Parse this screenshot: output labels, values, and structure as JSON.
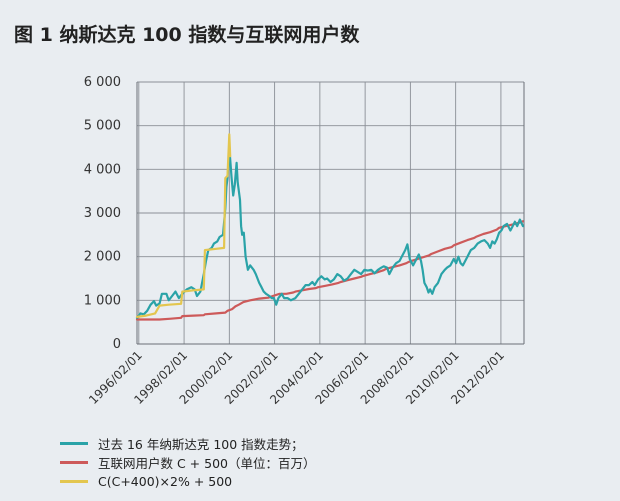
{
  "title": "图 1  纳斯达克 100 指数与互联网用户数",
  "chart_data": {
    "type": "line",
    "title": "图 1  纳斯达克 100 指数与互联网用户数",
    "xlabel": "",
    "ylabel": "",
    "xlim": [
      1996.0,
      2013.1
    ],
    "ylim": [
      0,
      6000
    ],
    "grid": true,
    "legend_position": "bottom-left",
    "x_ticks": [
      {
        "label": "1996/02/01",
        "value": 1996.08
      },
      {
        "label": "1998/02/01",
        "value": 1998.08
      },
      {
        "label": "2000/02/01",
        "value": 2000.08
      },
      {
        "label": "2002/02/01",
        "value": 2002.08
      },
      {
        "label": "2004/02/01",
        "value": 2004.08
      },
      {
        "label": "2006/02/01",
        "value": 2006.08
      },
      {
        "label": "2008/02/01",
        "value": 2008.08
      },
      {
        "label": "2010/02/01",
        "value": 2010.08
      },
      {
        "label": "2012/02/01",
        "value": 2012.08
      }
    ],
    "y_ticks": [
      {
        "label": "0",
        "value": 0
      },
      {
        "label": "1 000",
        "value": 1000
      },
      {
        "label": "2 000",
        "value": 2000
      },
      {
        "label": "3 000",
        "value": 3000
      },
      {
        "label": "4 000",
        "value": 4000
      },
      {
        "label": "5 000",
        "value": 5000
      },
      {
        "label": "6 000",
        "value": 6000
      }
    ],
    "series": [
      {
        "name": "过去 16 年纳斯达克 100 指数走势；",
        "color": "#2aa3a8",
        "points": [
          [
            1996.0,
            600
          ],
          [
            1996.15,
            700
          ],
          [
            1996.3,
            680
          ],
          [
            1996.45,
            760
          ],
          [
            1996.6,
            900
          ],
          [
            1996.75,
            980
          ],
          [
            1996.85,
            880
          ],
          [
            1997.0,
            930
          ],
          [
            1997.1,
            1150
          ],
          [
            1997.3,
            1150
          ],
          [
            1997.4,
            1000
          ],
          [
            1997.55,
            1100
          ],
          [
            1997.7,
            1200
          ],
          [
            1997.85,
            1050
          ],
          [
            1998.0,
            1150
          ],
          [
            1998.2,
            1250
          ],
          [
            1998.4,
            1300
          ],
          [
            1998.55,
            1250
          ],
          [
            1998.65,
            1100
          ],
          [
            1998.8,
            1200
          ],
          [
            1998.95,
            1600
          ],
          [
            1999.05,
            1900
          ],
          [
            1999.15,
            2150
          ],
          [
            1999.3,
            2200
          ],
          [
            1999.4,
            2300
          ],
          [
            1999.55,
            2350
          ],
          [
            1999.65,
            2450
          ],
          [
            1999.8,
            2500
          ],
          [
            1999.9,
            3100
          ],
          [
            1999.95,
            3600
          ],
          [
            2000.0,
            3800
          ],
          [
            2000.05,
            4200
          ],
          [
            2000.1,
            4350
          ],
          [
            2000.18,
            3800
          ],
          [
            2000.25,
            3400
          ],
          [
            2000.32,
            3650
          ],
          [
            2000.4,
            4150
          ],
          [
            2000.45,
            3700
          ],
          [
            2000.55,
            3300
          ],
          [
            2000.6,
            2700
          ],
          [
            2000.65,
            2500
          ],
          [
            2000.72,
            2550
          ],
          [
            2000.8,
            2000
          ],
          [
            2000.9,
            1700
          ],
          [
            2001.0,
            1800
          ],
          [
            2001.15,
            1700
          ],
          [
            2001.25,
            1600
          ],
          [
            2001.4,
            1400
          ],
          [
            2001.5,
            1300
          ],
          [
            2001.6,
            1200
          ],
          [
            2001.7,
            1150
          ],
          [
            2001.85,
            1100
          ],
          [
            2001.95,
            1050
          ],
          [
            2002.05,
            1050
          ],
          [
            2002.15,
            900
          ],
          [
            2002.25,
            1050
          ],
          [
            2002.4,
            1150
          ],
          [
            2002.5,
            1050
          ],
          [
            2002.65,
            1050
          ],
          [
            2002.8,
            1000
          ],
          [
            2003.0,
            1050
          ],
          [
            2003.15,
            1150
          ],
          [
            2003.3,
            1250
          ],
          [
            2003.45,
            1350
          ],
          [
            2003.6,
            1350
          ],
          [
            2003.75,
            1420
          ],
          [
            2003.85,
            1350
          ],
          [
            2004.0,
            1480
          ],
          [
            2004.15,
            1550
          ],
          [
            2004.3,
            1480
          ],
          [
            2004.4,
            1500
          ],
          [
            2004.55,
            1420
          ],
          [
            2004.7,
            1480
          ],
          [
            2004.85,
            1600
          ],
          [
            2005.0,
            1550
          ],
          [
            2005.15,
            1450
          ],
          [
            2005.3,
            1500
          ],
          [
            2005.45,
            1600
          ],
          [
            2005.6,
            1700
          ],
          [
            2005.75,
            1650
          ],
          [
            2005.9,
            1600
          ],
          [
            2006.05,
            1700
          ],
          [
            2006.2,
            1680
          ],
          [
            2006.35,
            1700
          ],
          [
            2006.5,
            1620
          ],
          [
            2006.65,
            1700
          ],
          [
            2006.8,
            1750
          ],
          [
            2006.9,
            1780
          ],
          [
            2007.05,
            1750
          ],
          [
            2007.15,
            1600
          ],
          [
            2007.3,
            1750
          ],
          [
            2007.45,
            1850
          ],
          [
            2007.6,
            1900
          ],
          [
            2007.75,
            2050
          ],
          [
            2007.85,
            2150
          ],
          [
            2007.95,
            2280
          ],
          [
            2008.05,
            1950
          ],
          [
            2008.2,
            1800
          ],
          [
            2008.3,
            1900
          ],
          [
            2008.45,
            2050
          ],
          [
            2008.55,
            1900
          ],
          [
            2008.62,
            1700
          ],
          [
            2008.7,
            1400
          ],
          [
            2008.8,
            1300
          ],
          [
            2008.88,
            1180
          ],
          [
            2008.95,
            1250
          ],
          [
            2009.05,
            1150
          ],
          [
            2009.15,
            1300
          ],
          [
            2009.3,
            1400
          ],
          [
            2009.45,
            1600
          ],
          [
            2009.6,
            1700
          ],
          [
            2009.7,
            1750
          ],
          [
            2009.85,
            1800
          ],
          [
            2010.0,
            1950
          ],
          [
            2010.1,
            1850
          ],
          [
            2010.2,
            2000
          ],
          [
            2010.3,
            1850
          ],
          [
            2010.4,
            1800
          ],
          [
            2010.5,
            1900
          ],
          [
            2010.6,
            2000
          ],
          [
            2010.75,
            2150
          ],
          [
            2010.9,
            2200
          ],
          [
            2011.05,
            2300
          ],
          [
            2011.2,
            2350
          ],
          [
            2011.35,
            2380
          ],
          [
            2011.5,
            2300
          ],
          [
            2011.6,
            2200
          ],
          [
            2011.7,
            2350
          ],
          [
            2011.8,
            2300
          ],
          [
            2011.9,
            2400
          ],
          [
            2012.0,
            2550
          ],
          [
            2012.1,
            2600
          ],
          [
            2012.2,
            2700
          ],
          [
            2012.35,
            2750
          ],
          [
            2012.5,
            2600
          ],
          [
            2012.6,
            2700
          ],
          [
            2012.7,
            2800
          ],
          [
            2012.8,
            2700
          ],
          [
            2012.92,
            2850
          ],
          [
            2013.05,
            2700
          ]
        ]
      },
      {
        "name": "互联网用户数 C + 500（单位：百万）",
        "color": "#cd5a5a",
        "points": [
          [
            1996.0,
            560
          ],
          [
            1996.5,
            560
          ],
          [
            1997.0,
            560
          ],
          [
            1997.5,
            580
          ],
          [
            1997.95,
            600
          ],
          [
            1998.0,
            640
          ],
          [
            1998.5,
            650
          ],
          [
            1998.95,
            660
          ],
          [
            1999.0,
            680
          ],
          [
            1999.5,
            700
          ],
          [
            1999.9,
            720
          ],
          [
            2000.0,
            760
          ],
          [
            2000.2,
            800
          ],
          [
            2000.35,
            860
          ],
          [
            2000.5,
            900
          ],
          [
            2000.7,
            960
          ],
          [
            2001.0,
            1000
          ],
          [
            2001.2,
            1020
          ],
          [
            2001.4,
            1040
          ],
          [
            2001.6,
            1050
          ],
          [
            2001.8,
            1060
          ],
          [
            2002.0,
            1100
          ],
          [
            2002.3,
            1150
          ],
          [
            2002.6,
            1150
          ],
          [
            2002.9,
            1180
          ],
          [
            2003.0,
            1200
          ],
          [
            2003.3,
            1230
          ],
          [
            2003.6,
            1260
          ],
          [
            2003.9,
            1280
          ],
          [
            2004.0,
            1300
          ],
          [
            2004.3,
            1330
          ],
          [
            2004.6,
            1360
          ],
          [
            2004.9,
            1400
          ],
          [
            2005.0,
            1420
          ],
          [
            2005.3,
            1460
          ],
          [
            2005.6,
            1500
          ],
          [
            2005.9,
            1540
          ],
          [
            2006.0,
            1560
          ],
          [
            2006.3,
            1600
          ],
          [
            2006.6,
            1640
          ],
          [
            2006.9,
            1690
          ],
          [
            2007.0,
            1720
          ],
          [
            2007.3,
            1760
          ],
          [
            2007.6,
            1800
          ],
          [
            2007.9,
            1850
          ],
          [
            2008.0,
            1880
          ],
          [
            2008.3,
            1930
          ],
          [
            2008.6,
            1980
          ],
          [
            2008.9,
            2030
          ],
          [
            2009.0,
            2060
          ],
          [
            2009.3,
            2120
          ],
          [
            2009.6,
            2180
          ],
          [
            2009.9,
            2220
          ],
          [
            2010.0,
            2260
          ],
          [
            2010.3,
            2320
          ],
          [
            2010.6,
            2380
          ],
          [
            2010.9,
            2430
          ],
          [
            2011.0,
            2460
          ],
          [
            2011.3,
            2520
          ],
          [
            2011.6,
            2560
          ],
          [
            2011.9,
            2620
          ],
          [
            2012.0,
            2660
          ],
          [
            2012.3,
            2700
          ],
          [
            2012.6,
            2740
          ],
          [
            2012.9,
            2780
          ],
          [
            2013.05,
            2810
          ]
        ]
      },
      {
        "name": "C(C+400)×2% + 500",
        "color": "#e3c64f",
        "points": [
          [
            1996.0,
            620
          ],
          [
            1996.4,
            650
          ],
          [
            1996.8,
            700
          ],
          [
            1997.0,
            880
          ],
          [
            1997.4,
            900
          ],
          [
            1997.95,
            920
          ],
          [
            1998.0,
            1200
          ],
          [
            1998.5,
            1230
          ],
          [
            1998.95,
            1250
          ],
          [
            1999.0,
            2150
          ],
          [
            1999.5,
            2180
          ],
          [
            1999.85,
            2200
          ],
          [
            1999.9,
            3800
          ],
          [
            2000.0,
            3850
          ],
          [
            2000.08,
            4800
          ],
          [
            2000.12,
            4300
          ]
        ]
      }
    ]
  },
  "legend": [
    {
      "label": "过去 16 年纳斯达克 100 指数走势；",
      "color": "#2aa3a8"
    },
    {
      "label": "互联网用户数 C + 500（单位：百万）",
      "color": "#cd5a5a"
    },
    {
      "label": "C(C+400)×2% + 500",
      "color": "#e3c64f"
    }
  ]
}
